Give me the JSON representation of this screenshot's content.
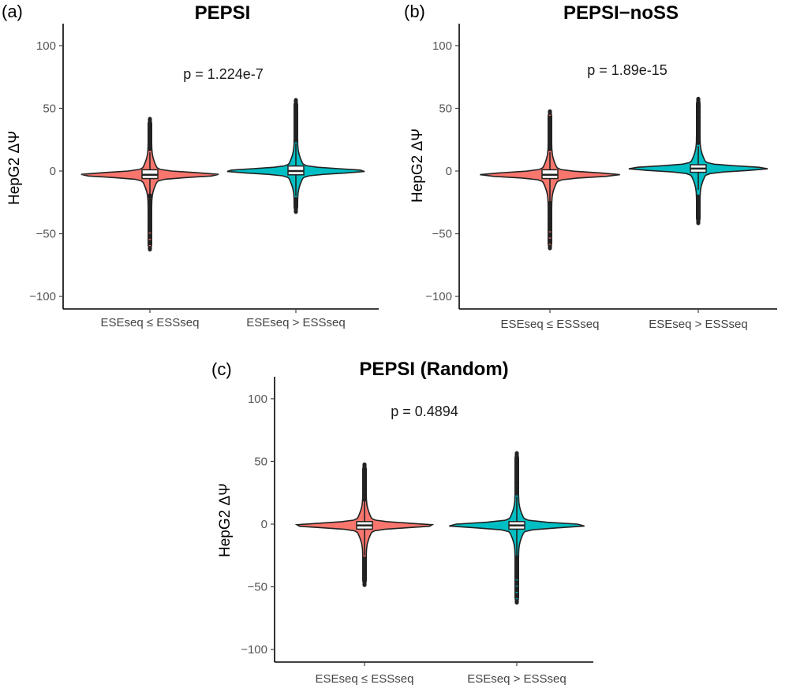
{
  "chart_data": [
    {
      "type": "violin",
      "panel_label": "(a)",
      "title": "PEPSI",
      "annotation": "p = 1.224e-7",
      "ylabel": "HepG2 ΔΨ",
      "ylim": [
        -110,
        110
      ],
      "yticks": [
        100,
        50,
        0,
        -50,
        -100
      ],
      "categories": [
        "ESEseq ≤ ESSseq",
        "ESEseq > ESSseq"
      ],
      "series": [
        {
          "category": "ESEseq ≤ ESSseq",
          "color": "#F8766D",
          "median": -3,
          "q1": -6,
          "q3": 1,
          "min": -63,
          "max": 42,
          "whisker_low": -25,
          "whisker_high": 15,
          "outliers": [
            -62,
            -57,
            -52,
            -47,
            -43,
            -39,
            -35,
            -31,
            -27,
            -24,
            -20,
            18,
            22,
            25,
            28,
            31,
            34,
            37,
            41
          ]
        },
        {
          "category": "ESEseq > ESSseq",
          "color": "#00BFC4",
          "median": 0,
          "q1": -3,
          "q3": 4,
          "min": -33,
          "max": 57,
          "whisker_low": -20,
          "whisker_high": 22,
          "outliers": [
            -32,
            -29,
            -26,
            -23,
            25,
            29,
            33,
            37,
            41,
            45,
            49,
            53,
            56
          ]
        }
      ]
    },
    {
      "type": "violin",
      "panel_label": "(b)",
      "title": "PEPSI−noSS",
      "annotation": "p = 1.89e-15",
      "ylabel": "HepG2 ΔΨ",
      "ylim": [
        -110,
        110
      ],
      "yticks": [
        100,
        50,
        0,
        -50,
        -100
      ],
      "categories": [
        "ESEseq ≤ ESSseq",
        "ESEseq > ESSseq"
      ],
      "series": [
        {
          "category": "ESEseq ≤ ESSseq",
          "color": "#F8766D",
          "median": -3,
          "q1": -6,
          "q3": 1,
          "min": -62,
          "max": 48,
          "whisker_low": -24,
          "whisker_high": 15,
          "outliers": [
            -61,
            -56,
            -51,
            -46,
            -42,
            -38,
            -34,
            -30,
            -26,
            18,
            22,
            26,
            30,
            34,
            38,
            42,
            47
          ]
        },
        {
          "category": "ESEseq > ESSseq",
          "color": "#00BFC4",
          "median": 2,
          "q1": -1,
          "q3": 5,
          "min": -42,
          "max": 58,
          "whisker_low": -15,
          "whisker_high": 20,
          "outliers": [
            -41,
            -37,
            -33,
            -29,
            -25,
            -21,
            23,
            27,
            31,
            35,
            39,
            43,
            47,
            51,
            55,
            57
          ]
        }
      ]
    },
    {
      "type": "violin",
      "panel_label": "(c)",
      "title": "PEPSI (Random)",
      "annotation": "p = 0.4894",
      "ylabel": "HepG2 ΔΨ",
      "ylim": [
        -110,
        110
      ],
      "yticks": [
        100,
        50,
        0,
        -50,
        -100
      ],
      "categories": [
        "ESEseq ≤ ESSseq",
        "ESEseq > ESSseq"
      ],
      "series": [
        {
          "category": "ESEseq ≤ ESSseq",
          "color": "#F8766D",
          "median": -1,
          "q1": -4,
          "q3": 2,
          "min": -49,
          "max": 48,
          "whisker_low": -25,
          "whisker_high": 18,
          "outliers": [
            -48,
            -44,
            -40,
            -36,
            -32,
            -28,
            20,
            24,
            28,
            32,
            36,
            40,
            44,
            47
          ]
        },
        {
          "category": "ESEseq > ESSseq",
          "color": "#00BFC4",
          "median": -1,
          "q1": -4,
          "q3": 2,
          "min": -63,
          "max": 57,
          "whisker_low": -25,
          "whisker_high": 22,
          "outliers": [
            -62,
            -57,
            -52,
            -47,
            -42,
            -38,
            -34,
            -30,
            -27,
            25,
            29,
            33,
            37,
            41,
            45,
            49,
            53,
            56
          ]
        }
      ]
    }
  ]
}
